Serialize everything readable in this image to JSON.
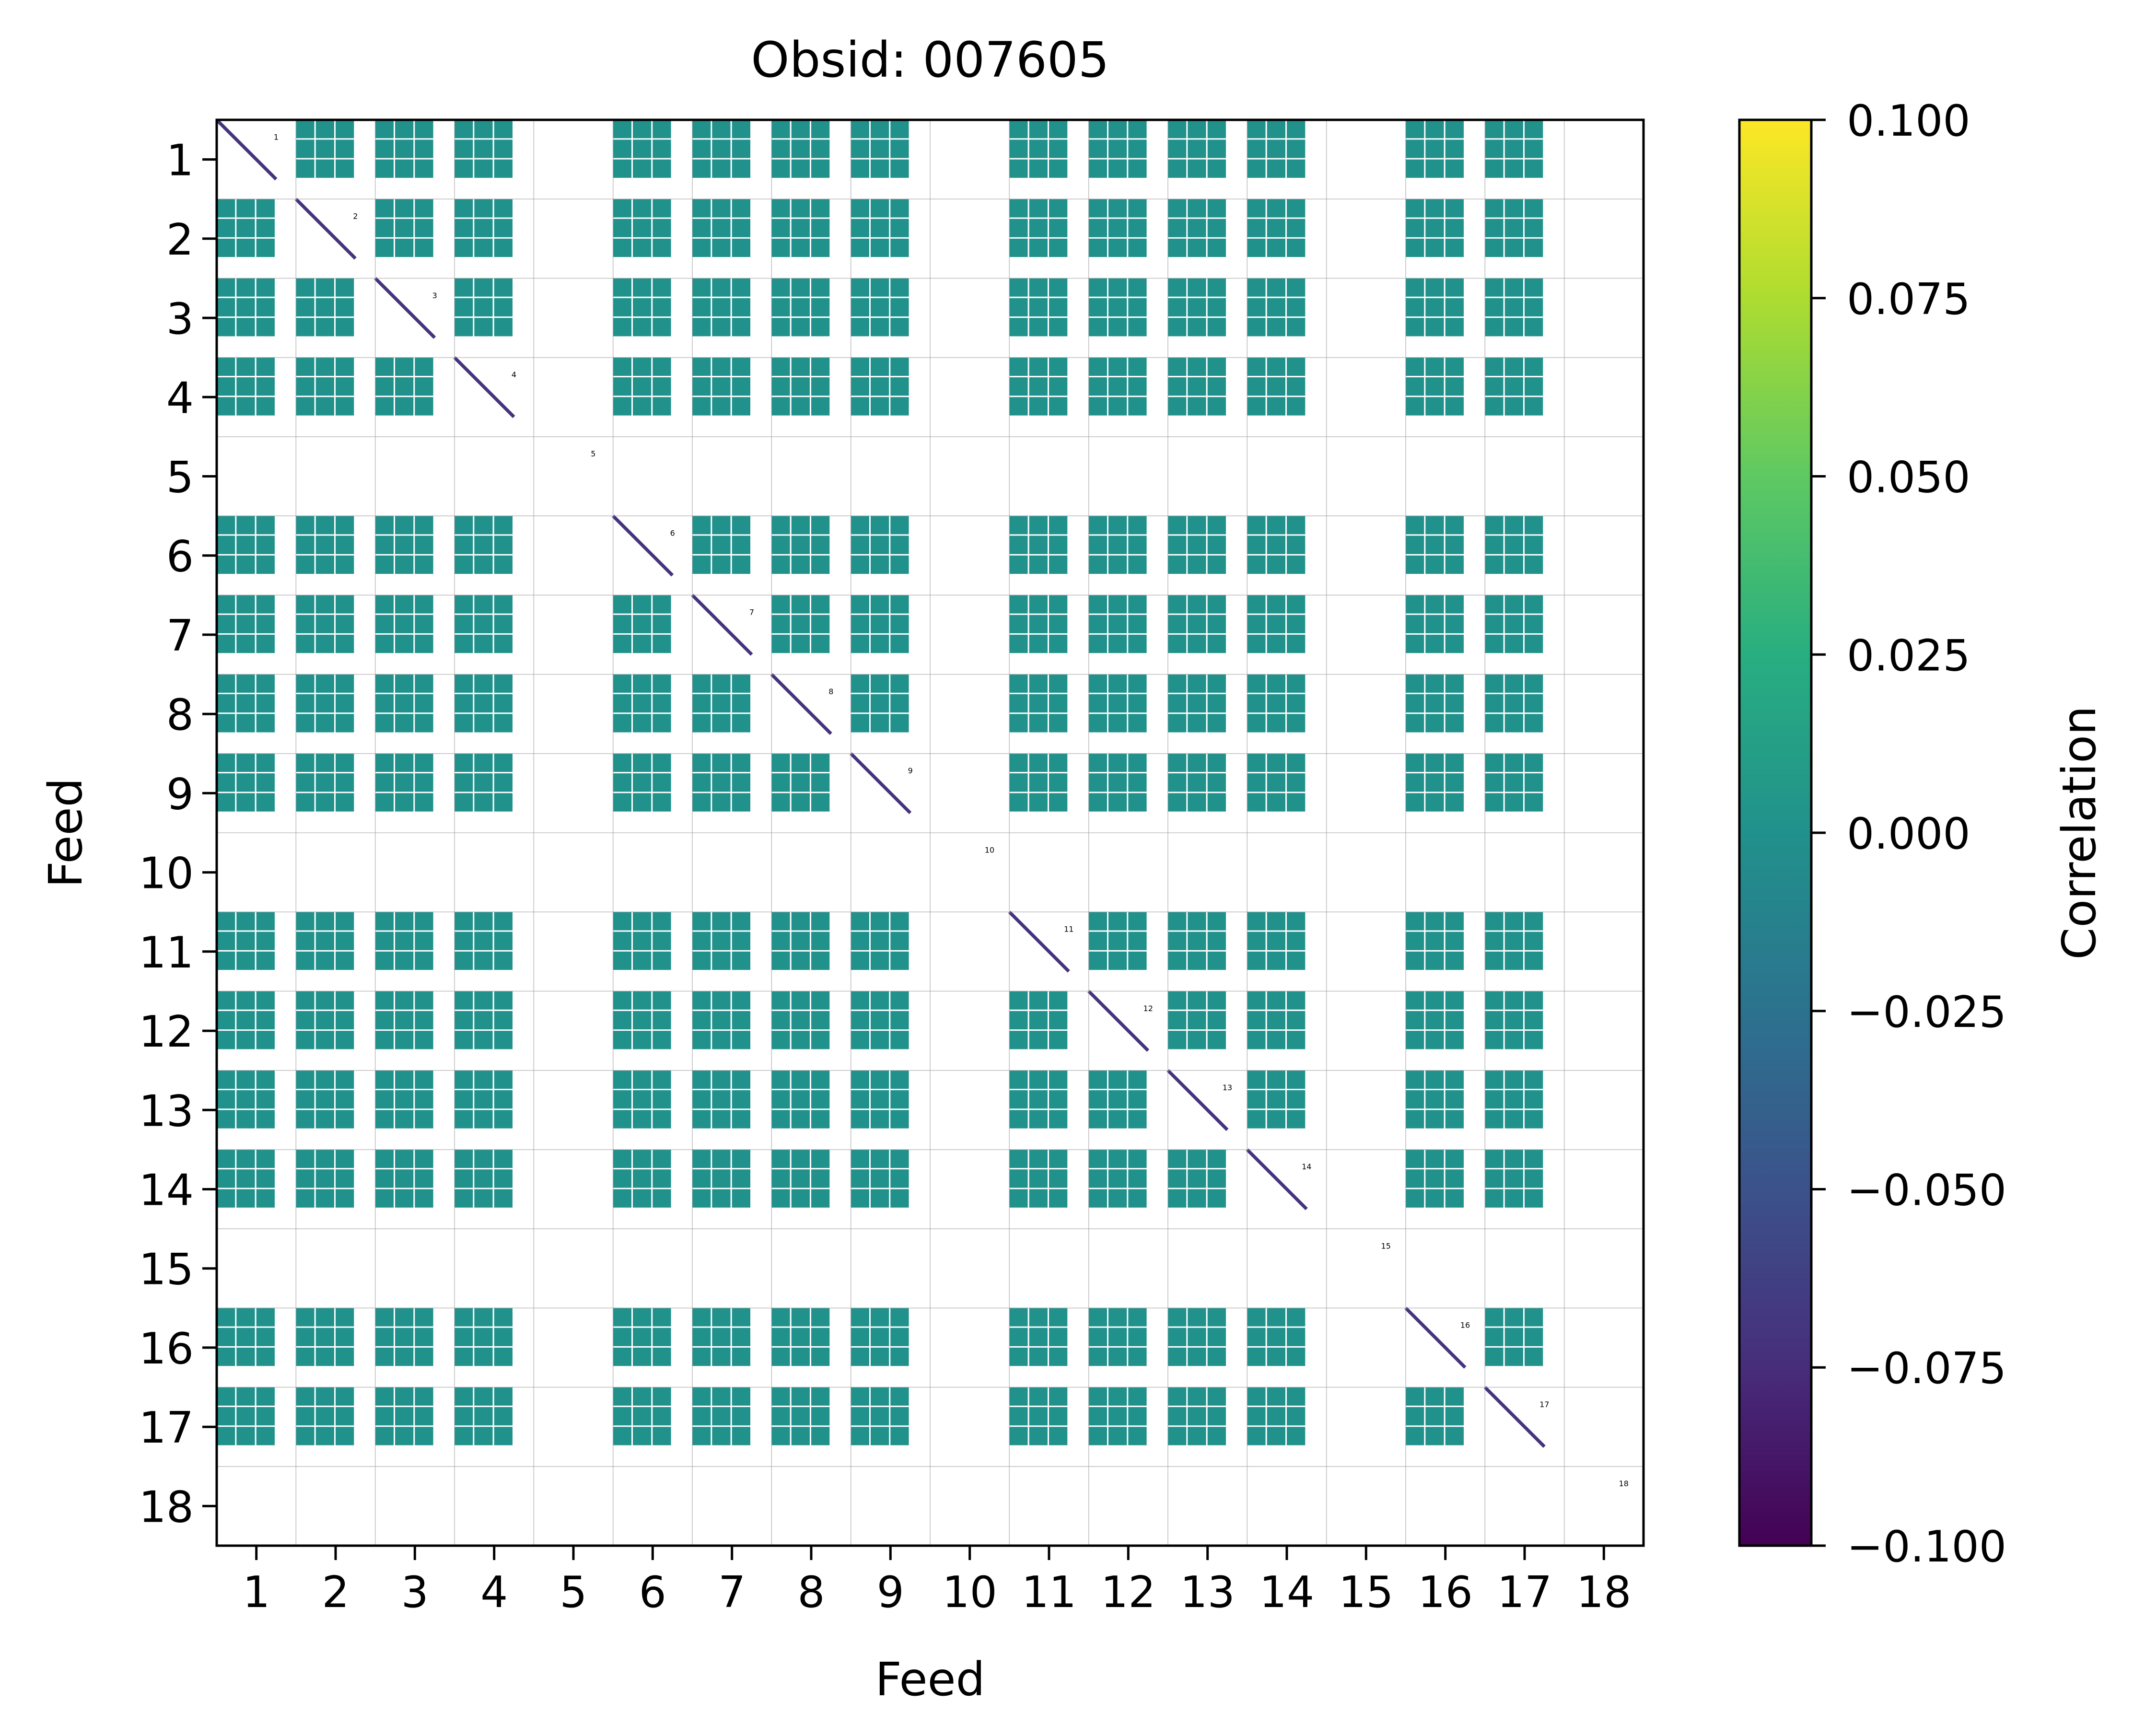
{
  "chart_data": {
    "type": "heatmap",
    "title": "Obsid: 007605",
    "xlabel": "Feed",
    "ylabel": "Feed",
    "x_tick_labels": [
      "1",
      "2",
      "3",
      "4",
      "5",
      "6",
      "7",
      "8",
      "9",
      "10",
      "11",
      "12",
      "13",
      "14",
      "15",
      "16",
      "17",
      "18"
    ],
    "y_tick_labels": [
      "1",
      "2",
      "3",
      "4",
      "5",
      "6",
      "7",
      "8",
      "9",
      "10",
      "11",
      "12",
      "13",
      "14",
      "15",
      "16",
      "17",
      "18"
    ],
    "feed_labels": [
      "1",
      "2",
      "3",
      "4",
      "5",
      "6",
      "7",
      "8",
      "9",
      "10",
      "11",
      "12",
      "13",
      "14",
      "15",
      "16",
      "17",
      "18"
    ],
    "feeds": 18,
    "sub_bins_per_feed": 4,
    "active_feeds": [
      1,
      2,
      3,
      4,
      6,
      7,
      8,
      9,
      11,
      12,
      13,
      14,
      16,
      17
    ],
    "inactive_feeds": [
      5,
      10,
      15,
      18
    ],
    "off_diagonal_value": 0.0,
    "diagonal_value": -0.07,
    "colorbar": {
      "label": "Correlation",
      "colormap": "viridis",
      "min": -0.1,
      "max": 0.1,
      "ticks": [
        "0.100",
        "0.075",
        "0.050",
        "0.025",
        "0.000",
        "−0.025",
        "−0.050",
        "−0.075",
        "−0.100"
      ],
      "tick_values": [
        0.1,
        0.075,
        0.05,
        0.025,
        0.0,
        -0.025,
        -0.05,
        -0.075,
        -0.1
      ]
    },
    "grid": true,
    "colors": {
      "cell": "#21918c",
      "diagonal": "#46337e",
      "grid_line": "#9a9a9a",
      "axis": "#000000",
      "background": "#ffffff"
    }
  }
}
